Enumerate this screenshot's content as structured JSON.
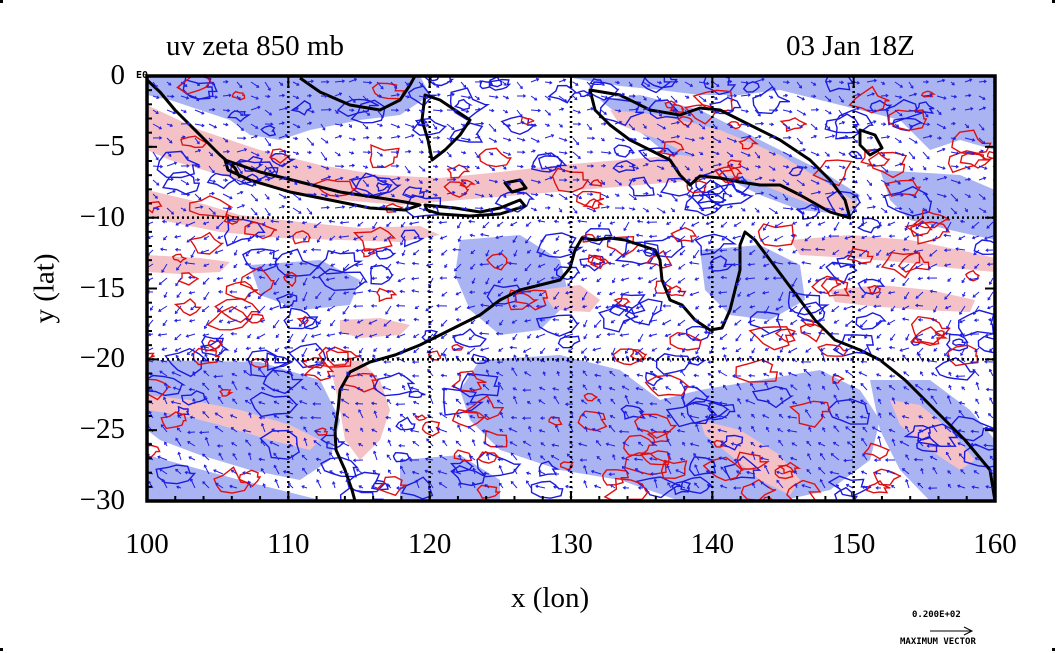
{
  "title_left": "uv zeta 850 mb",
  "title_right": "03 Jan 18Z",
  "zero_label": "E0",
  "x_axis": {
    "label": "x (lon)",
    "ticks": [
      "100",
      "110",
      "120",
      "130",
      "140",
      "150",
      "160"
    ],
    "range": [
      100,
      160
    ]
  },
  "y_axis": {
    "label": "y (lat)",
    "ticks": [
      "0",
      "−5",
      "−10",
      "−15",
      "−20",
      "−25",
      "−30"
    ],
    "range": [
      -30,
      0
    ]
  },
  "gridlines": {
    "lon": [
      110,
      120,
      130,
      140,
      150
    ],
    "lat": [
      -10,
      -20
    ]
  },
  "vector_legend": {
    "value": "0.200E+02",
    "caption": "MAXIMUM VECTOR"
  },
  "colors": {
    "positive_fill": "#f4c2c6",
    "negative_fill": "#aab4f2",
    "positive_contour": "#e01010",
    "negative_contour": "#1a1ae0",
    "vector": "#2020e6",
    "coast": "#000000"
  }
}
